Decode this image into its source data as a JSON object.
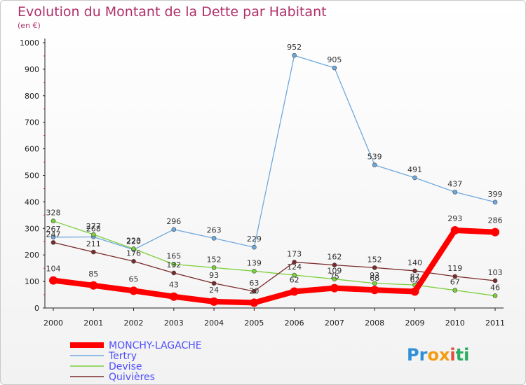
{
  "chart_data": {
    "type": "line",
    "title": "Evolution du Montant de la Dette par Habitant",
    "subtitle": "(en €)",
    "categories": [
      "2000",
      "2001",
      "2002",
      "2003",
      "2004",
      "2005",
      "2006",
      "2007",
      "2008",
      "2009",
      "2010",
      "2011"
    ],
    "ylim": [
      0,
      1000
    ],
    "yticks": [
      0,
      100,
      200,
      300,
      400,
      500,
      600,
      700,
      800,
      900,
      1000
    ],
    "grid": false,
    "legend_position": "bottom-left",
    "series": [
      {
        "name": "MONCHY-LAGACHE",
        "color": "#ff0000",
        "values": [
          104,
          85,
          65,
          43,
          24,
          20,
          62,
          75,
          68,
          62,
          293,
          286
        ]
      },
      {
        "name": "Tertry",
        "color": "#6fa8dc",
        "values": [
          267,
          268,
          220,
          296,
          263,
          229,
          952,
          905,
          539,
          491,
          437,
          399
        ]
      },
      {
        "name": "Devise",
        "color": "#7ccf3c",
        "values": [
          328,
          277,
          223,
          165,
          152,
          139,
          124,
          109,
          93,
          87,
          67,
          46
        ]
      },
      {
        "name": "Quivières",
        "color": "#7a2a2a",
        "values": [
          247,
          211,
          176,
          132,
          93,
          63,
          173,
          162,
          152,
          140,
          119,
          103
        ]
      }
    ],
    "logo": {
      "text": "Proxiti",
      "letters": [
        "P",
        "r",
        "o",
        "x",
        "i",
        "t",
        "i"
      ],
      "colors": [
        "#2f8fd8",
        "#2f8fd8",
        "#f39c12",
        "#f39c12",
        "#e74c3c",
        "#27ae60",
        "#27ae60"
      ]
    }
  }
}
